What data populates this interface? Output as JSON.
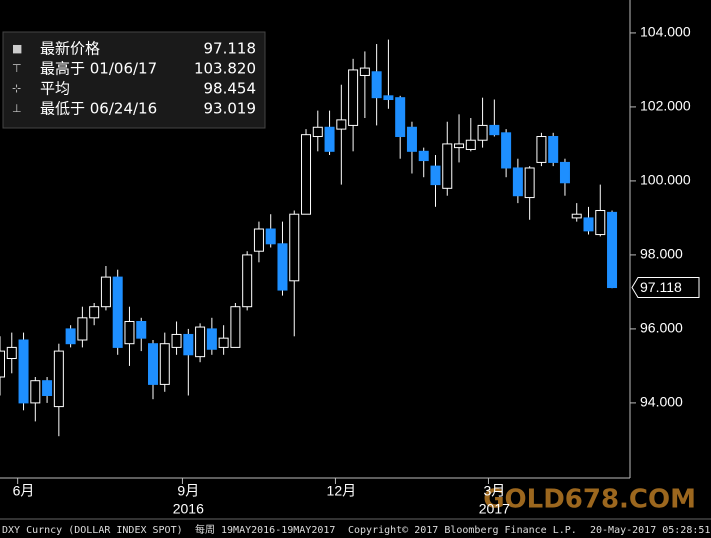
{
  "chart_data": {
    "type": "candlestick",
    "categories": [
      null,
      null,
      "6月",
      null,
      null,
      null,
      null,
      null,
      null,
      null,
      null,
      null,
      null,
      null,
      null,
      null,
      "9月",
      null,
      null,
      null,
      null,
      null,
      null,
      null,
      null,
      null,
      null,
      null,
      null,
      "12月",
      null,
      null,
      null,
      null,
      null,
      null,
      null,
      null,
      null,
      null,
      null,
      null,
      "3月",
      null,
      null,
      null,
      null,
      null,
      null,
      null,
      null,
      null,
      null
    ],
    "categories_year": [
      null,
      null,
      null,
      null,
      null,
      null,
      null,
      null,
      null,
      null,
      null,
      null,
      null,
      null,
      null,
      null,
      "2016",
      null,
      null,
      null,
      null,
      null,
      null,
      null,
      null,
      null,
      null,
      null,
      null,
      null,
      null,
      null,
      null,
      null,
      null,
      null,
      null,
      null,
      null,
      null,
      null,
      null,
      "2017",
      null,
      null,
      null,
      null,
      null,
      null,
      null,
      null,
      null,
      null
    ],
    "open": [
      94.7,
      95.2,
      95.7,
      94.0,
      94.6,
      93.9,
      96.0,
      95.7,
      96.3,
      96.6,
      97.4,
      95.6,
      96.2,
      95.6,
      94.5,
      95.5,
      95.85,
      95.25,
      96.0,
      95.5,
      95.5,
      96.6,
      98.1,
      98.7,
      98.3,
      97.3,
      99.1,
      101.2,
      101.45,
      101.4,
      101.5,
      102.85,
      102.95,
      102.3,
      102.25,
      101.45,
      100.8,
      100.4,
      99.8,
      100.9,
      100.85,
      101.1,
      101.5,
      101.3,
      100.35,
      99.55,
      100.5,
      101.2,
      100.5,
      99.0,
      99.0,
      98.55,
      99.15
    ],
    "high": [
      95.8,
      95.9,
      95.9,
      94.7,
      94.7,
      95.6,
      96.1,
      96.6,
      96.7,
      97.7,
      97.6,
      96.6,
      96.3,
      95.7,
      95.9,
      96.2,
      96.0,
      96.15,
      96.3,
      96.1,
      96.7,
      98.1,
      98.9,
      99.1,
      98.9,
      99.2,
      101.4,
      101.9,
      101.9,
      102.6,
      103.3,
      103.5,
      103.7,
      103.82,
      102.3,
      101.6,
      100.9,
      100.7,
      101.6,
      101.8,
      101.7,
      102.25,
      102.2,
      101.4,
      100.6,
      100.4,
      101.3,
      101.3,
      100.6,
      99.4,
      99.3,
      99.9,
      99.2
    ],
    "low": [
      94.2,
      94.8,
      93.8,
      93.5,
      94.0,
      93.1,
      95.5,
      95.5,
      96.1,
      96.5,
      95.3,
      95.0,
      95.4,
      94.1,
      94.3,
      95.3,
      94.2,
      95.1,
      95.3,
      95.3,
      95.5,
      96.5,
      97.8,
      98.2,
      96.9,
      95.8,
      99.1,
      100.8,
      100.7,
      99.9,
      100.8,
      101.7,
      101.5,
      101.95,
      100.6,
      100.2,
      100.1,
      99.3,
      99.6,
      100.5,
      100.8,
      100.9,
      101.2,
      100.1,
      99.4,
      98.95,
      100.4,
      100.4,
      99.6,
      98.9,
      98.55,
      98.5,
      97.1
    ],
    "close": [
      95.4,
      95.5,
      94.0,
      94.6,
      94.2,
      95.4,
      95.6,
      96.3,
      96.6,
      97.4,
      95.5,
      96.2,
      95.75,
      94.5,
      95.6,
      95.85,
      95.3,
      96.05,
      95.45,
      95.75,
      96.6,
      98.0,
      98.7,
      98.3,
      97.05,
      99.1,
      101.25,
      101.45,
      100.8,
      101.65,
      103.0,
      103.05,
      102.25,
      102.2,
      101.2,
      100.8,
      100.55,
      99.9,
      101.0,
      101.0,
      101.1,
      101.5,
      101.25,
      100.35,
      99.6,
      100.35,
      101.2,
      100.5,
      99.95,
      99.1,
      98.65,
      99.2,
      97.118
    ],
    "up_color": "#000000",
    "down_color": "#1e8fff",
    "ylim": [
      91.97,
      104.89
    ],
    "yticks": [
      {
        "value": 94,
        "label": "94.000"
      },
      {
        "value": 96,
        "label": "96.000"
      },
      {
        "value": 98,
        "label": "98.000"
      },
      {
        "value": 100,
        "label": "100.000"
      },
      {
        "value": 102,
        "label": "102.000"
      },
      {
        "value": 104,
        "label": "104.000"
      }
    ],
    "last_price": 97.118,
    "legend": [
      {
        "label": "最新价格",
        "value": 97.118
      },
      {
        "label": "最高于 01/06/17",
        "value": {
          "value": 103.82,
          "label": "103.820"
        }
      },
      {
        "label": "平均",
        "value": 98.454
      },
      {
        "label": "最低于 06/24/16",
        "value": 93.019
      }
    ],
    "footer": [
      "DXY Curncy (DOLLAR INDEX SPOT)",
      "每周 19MAY2016-19MAY2017",
      "Copyright© 2017 Bloomberg Finance L.P.",
      "20-May-2017 05:28:51"
    ],
    "watermark": "GOLD678.COM"
  }
}
